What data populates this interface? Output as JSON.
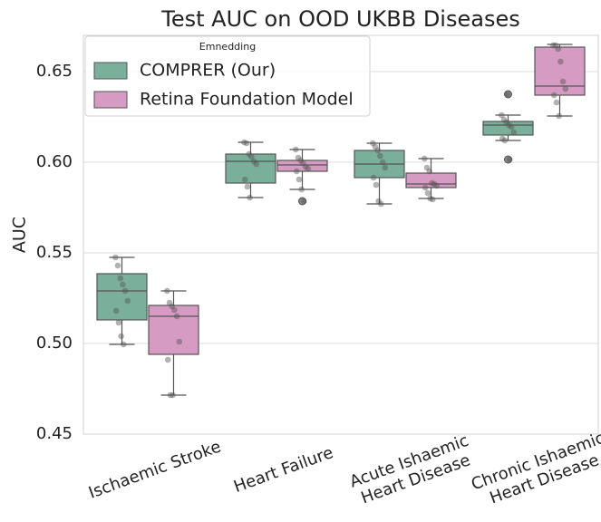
{
  "chart_data": {
    "type": "box",
    "title": "Test AUC on OOD UKBB Diseases",
    "ylabel": "AUC",
    "legend_title": "Emnedding",
    "legend": "upper left",
    "grid": true,
    "categories": [
      [
        "Ischaemic Stroke"
      ],
      [
        "Heart Failure"
      ],
      [
        "Acute Ishaemic",
        "Heart Disease"
      ],
      [
        "Chronic Ishaemic",
        "Heart Disease"
      ]
    ],
    "ylim": [
      0.45,
      0.67
    ],
    "yticks": [
      0.45,
      {
        "value": 0.5,
        "label": "0.50"
      },
      0.55,
      {
        "value": 0.6,
        "label": "0.60"
      },
      0.65
    ],
    "series": [
      {
        "name": "COMPRER (Our)",
        "color": "#7aaf9c",
        "stats": [
          {
            "whislo": 0.4995,
            "q1": 0.513,
            "med": 0.529,
            "q3": 0.5385,
            "whishi": 0.5475,
            "fliers": []
          },
          {
            "whislo": 0.5805,
            "q1": 0.5885,
            "med": 0.6005,
            "q3": 0.6045,
            "whishi": 0.611,
            "fliers": []
          },
          {
            "whislo": 0.577,
            "q1": 0.5915,
            "med": 0.599,
            "q3": 0.6065,
            "whishi": 0.6105,
            "fliers": []
          },
          {
            "whislo": 0.612,
            "q1": 0.615,
            "med": 0.6205,
            "q3": 0.6225,
            "whishi": 0.626,
            "fliers": [
              0.6375,
              0.6015
            ]
          }
        ],
        "points": [
          [
            0.5475,
            0.543,
            0.536,
            0.5325,
            0.529,
            0.5235,
            0.518,
            0.5115,
            0.504,
            0.4995
          ],
          [
            0.611,
            0.6105,
            0.6045,
            0.603,
            0.6005,
            0.599,
            0.5905,
            0.5865,
            0.5805
          ],
          [
            0.6105,
            0.6085,
            0.6065,
            0.6035,
            0.6,
            0.597,
            0.5915,
            0.5875,
            0.5785,
            0.577
          ],
          [
            0.626,
            0.6235,
            0.622,
            0.6205,
            0.6195,
            0.6165,
            0.613,
            0.612,
            0.6375,
            0.6015
          ]
        ]
      },
      {
        "name": "Retina Foundation Model",
        "color": "#d69bc2",
        "stats": [
          {
            "whislo": 0.4715,
            "q1": 0.494,
            "med": 0.515,
            "q3": 0.521,
            "whishi": 0.529,
            "fliers": []
          },
          {
            "whislo": 0.585,
            "q1": 0.595,
            "med": 0.5985,
            "q3": 0.601,
            "whishi": 0.607,
            "fliers": [
              0.5785
            ]
          },
          {
            "whislo": 0.58,
            "q1": 0.586,
            "med": 0.588,
            "q3": 0.594,
            "whishi": 0.602,
            "fliers": []
          },
          {
            "whislo": 0.6255,
            "q1": 0.637,
            "med": 0.642,
            "q3": 0.6635,
            "whishi": 0.665,
            "fliers": []
          }
        ],
        "points": [
          [
            0.529,
            0.5225,
            0.5205,
            0.5185,
            0.515,
            0.501,
            0.491,
            0.4715,
            0.4715
          ],
          [
            0.607,
            0.6025,
            0.601,
            0.5995,
            0.5975,
            0.5965,
            0.595,
            0.5905,
            0.585,
            0.5785
          ],
          [
            0.602,
            0.597,
            0.595,
            0.5885,
            0.588,
            0.587,
            0.586,
            0.583,
            0.58,
            0.5795
          ],
          [
            0.6645,
            0.6645,
            0.6625,
            0.6555,
            0.6445,
            0.6405,
            0.637,
            0.633,
            0.6255
          ]
        ]
      }
    ]
  }
}
